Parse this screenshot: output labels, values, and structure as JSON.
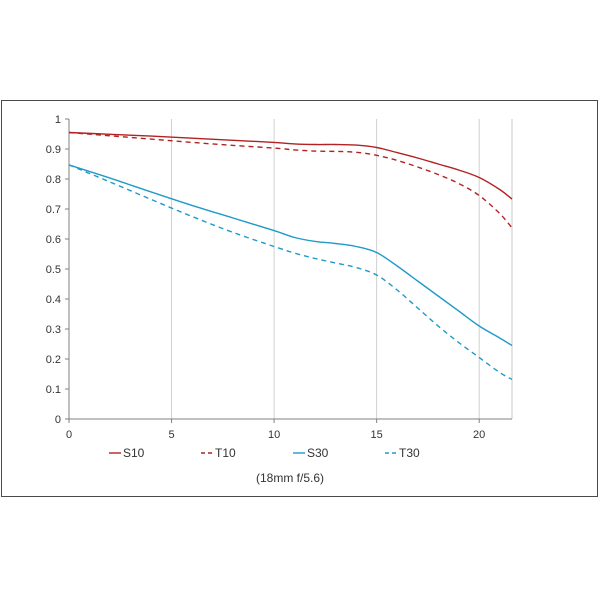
{
  "chart_data": {
    "type": "line",
    "title": "",
    "xlabel": "",
    "ylabel": "",
    "caption": "(18mm f/5.6)",
    "xlim": [
      0,
      21.6
    ],
    "ylim": [
      0,
      1
    ],
    "x_ticks": [
      0,
      5,
      10,
      15,
      20
    ],
    "y_ticks": [
      0,
      0.1,
      0.2,
      0.3,
      0.4,
      0.5,
      0.6,
      0.7,
      0.8,
      0.9,
      1
    ],
    "y_tick_labels": [
      "0",
      "0.1",
      "0.2",
      "0.3",
      "0.4",
      "0.5",
      "0.6",
      "0.7",
      "0.8",
      "0.9",
      "1"
    ],
    "grid": "vertical",
    "legend_position": "bottom",
    "series": [
      {
        "name": "S10",
        "color": "#b22222",
        "dash": "solid",
        "x": [
          0,
          2,
          4,
          6,
          8,
          10,
          11,
          12,
          13,
          14,
          15,
          16,
          17,
          18,
          19,
          20,
          21,
          21.6
        ],
        "y": [
          0.955,
          0.949,
          0.943,
          0.936,
          0.929,
          0.922,
          0.917,
          0.915,
          0.915,
          0.913,
          0.905,
          0.888,
          0.87,
          0.85,
          0.83,
          0.805,
          0.765,
          0.733
        ]
      },
      {
        "name": "T10",
        "color": "#b22222",
        "dash": "dashed",
        "x": [
          0,
          2,
          4,
          6,
          8,
          10,
          11,
          12,
          13,
          14,
          15,
          16,
          17,
          18,
          19,
          20,
          21,
          21.6
        ],
        "y": [
          0.955,
          0.944,
          0.933,
          0.922,
          0.912,
          0.903,
          0.897,
          0.893,
          0.892,
          0.889,
          0.879,
          0.862,
          0.84,
          0.815,
          0.785,
          0.745,
          0.685,
          0.637
        ]
      },
      {
        "name": "S30",
        "color": "#1f9ac9",
        "dash": "solid",
        "x": [
          0,
          2,
          4,
          6,
          8,
          10,
          11,
          12,
          13,
          14,
          15,
          16,
          17,
          18,
          19,
          20,
          21,
          21.6
        ],
        "y": [
          0.847,
          0.803,
          0.757,
          0.712,
          0.67,
          0.628,
          0.605,
          0.592,
          0.585,
          0.575,
          0.555,
          0.51,
          0.46,
          0.41,
          0.36,
          0.31,
          0.27,
          0.245
        ]
      },
      {
        "name": "T30",
        "color": "#1f9ac9",
        "dash": "dashed",
        "x": [
          0,
          2,
          4,
          6,
          8,
          10,
          11,
          12,
          13,
          14,
          15,
          16,
          17,
          18,
          19,
          20,
          21,
          21.6
        ],
        "y": [
          0.847,
          0.79,
          0.732,
          0.675,
          0.622,
          0.575,
          0.553,
          0.535,
          0.52,
          0.505,
          0.48,
          0.43,
          0.37,
          0.31,
          0.255,
          0.205,
          0.155,
          0.132
        ]
      }
    ]
  }
}
